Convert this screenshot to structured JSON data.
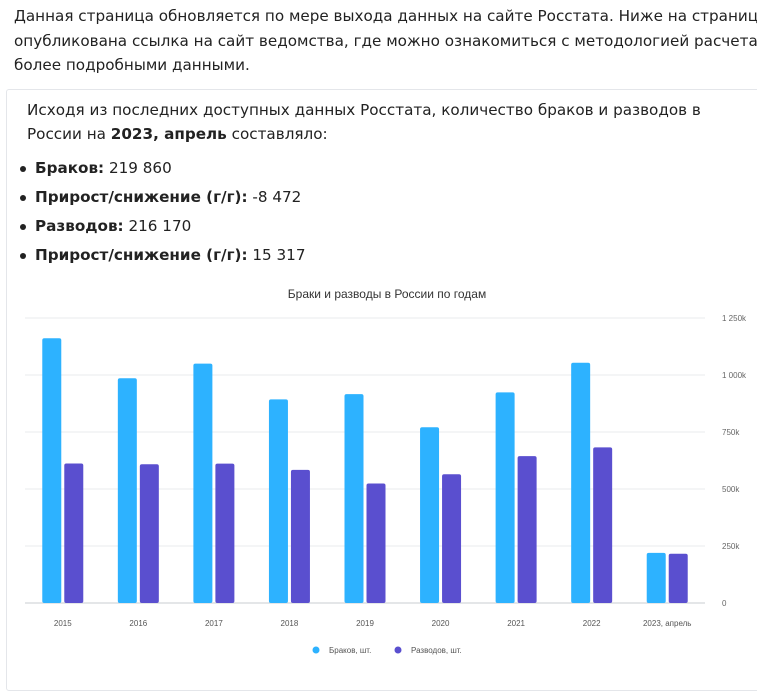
{
  "intro_text": "Данная страница обновляется по мере выхода данных на сайте Росстата. Ниже на странице опубликована ссылка на сайт ведомства, где можно ознакомиться с методологией расчета и более подробными данными.",
  "summary": {
    "lead": "Исходя из последних доступных данных Росстата, количество браков и разводов в России на",
    "period": "2023, апрель",
    "tail": "составляло:"
  },
  "facts": [
    {
      "label": "Браков:",
      "value": "219 860"
    },
    {
      "label": "Прирост/снижение (г/г):",
      "value": "-8 472"
    },
    {
      "label": "Разводов:",
      "value": "216 170"
    },
    {
      "label": "Прирост/снижение (г/г):",
      "value": "15 317"
    }
  ],
  "chart_data": {
    "type": "bar",
    "title": "Браки и разводы в России по годам",
    "categories": [
      "2015",
      "2016",
      "2017",
      "2018",
      "2019",
      "2020",
      "2021",
      "2022",
      "2023, апрель"
    ],
    "series": [
      {
        "name": "Браков, шт.",
        "color": "#2db2ff",
        "values": [
          1161100,
          985800,
          1049700,
          893000,
          916300,
          770900,
          923600,
          1053800,
          219860
        ]
      },
      {
        "name": "Разводов, шт.",
        "color": "#5a4fcf",
        "values": [
          611600,
          608300,
          611400,
          583900,
          524200,
          564700,
          644200,
          682700,
          216170
        ]
      }
    ],
    "ylim": [
      0,
      1250000
    ],
    "yticks": [
      0,
      250000,
      500000,
      750000,
      1000000,
      1250000
    ],
    "ytick_labels": [
      "0",
      "250k",
      "500k",
      "750k",
      "1 000k",
      "1 250k"
    ],
    "xlabel": "",
    "ylabel": "",
    "y_axis_side": "right",
    "legend_position": "bottom"
  }
}
